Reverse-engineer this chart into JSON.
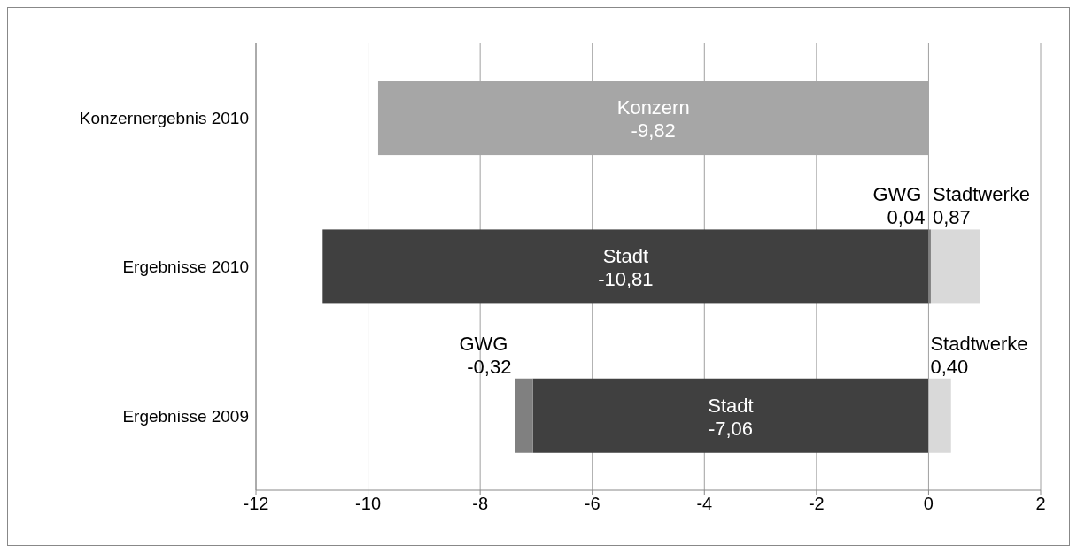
{
  "chart_data": {
    "type": "bar",
    "orientation": "horizontal",
    "stacked": true,
    "categories": [
      "Konzernergebnis 2010",
      "Ergebnisse 2010",
      "Ergebnisse 2009"
    ],
    "series": [
      {
        "name": "Konzern",
        "color": "#a6a6a6",
        "values": [
          -9.82,
          null,
          null
        ],
        "value_labels": [
          "-9,82",
          null,
          null
        ]
      },
      {
        "name": "Stadt",
        "color": "#404040",
        "values": [
          null,
          -10.81,
          -7.06
        ],
        "value_labels": [
          null,
          "-10,81",
          "-7,06"
        ]
      },
      {
        "name": "GWG",
        "color": "#808080",
        "values": [
          null,
          0.04,
          -0.32
        ],
        "value_labels": [
          null,
          "0,04",
          "-0,32"
        ]
      },
      {
        "name": "Stadtwerke",
        "color": "#d9d9d9",
        "values": [
          null,
          0.87,
          0.4
        ],
        "value_labels": [
          null,
          "0,87",
          "0,40"
        ]
      }
    ],
    "xlim": [
      -12,
      2
    ],
    "xticks": [
      -12,
      -10,
      -8,
      -6,
      -4,
      -2,
      0,
      2
    ],
    "grid": "x",
    "legend": false
  }
}
